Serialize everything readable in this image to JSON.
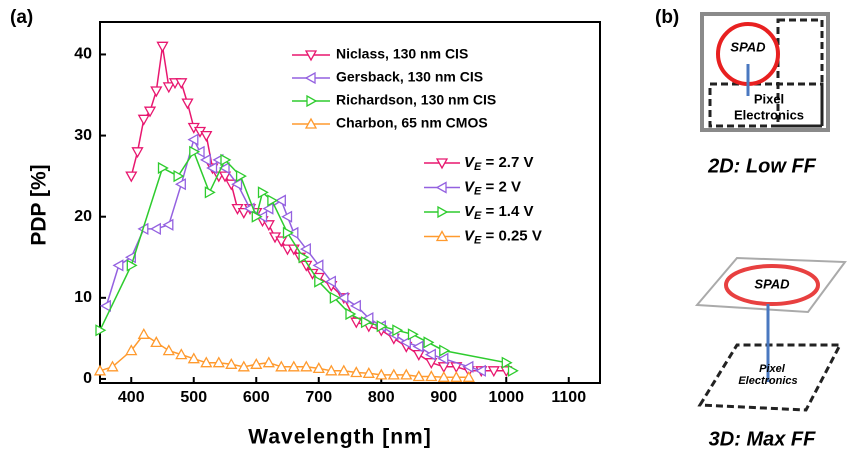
{
  "chart_data": {
    "type": "line",
    "panel_label": "(a)",
    "x_label": "Wavelength [nm]",
    "y_label": "PDP [%]",
    "xlim": [
      350,
      1150
    ],
    "ylim": [
      -0.5,
      44
    ],
    "xticks": [
      400,
      500,
      600,
      700,
      800,
      900,
      1000,
      1100
    ],
    "yticks": [
      0,
      10,
      20,
      30,
      40
    ],
    "series": [
      {
        "name": "Niclass, 130 nm CIS",
        "color": "#e8176f",
        "marker": "triangle-down",
        "bias_label": [
          "V",
          "E",
          " = 2.7 V"
        ],
        "x": [
          400,
          410,
          420,
          430,
          440,
          450,
          460,
          470,
          480,
          490,
          500,
          510,
          520,
          530,
          540,
          550,
          560,
          570,
          580,
          590,
          600,
          610,
          620,
          630,
          640,
          650,
          660,
          670,
          680,
          690,
          700,
          720,
          740,
          760,
          780,
          800,
          820,
          840,
          860,
          880,
          900,
          920,
          940,
          960,
          980,
          1000
        ],
        "values": [
          25,
          28,
          32,
          33,
          35.5,
          41,
          36,
          36.5,
          36.5,
          34,
          31,
          30.5,
          30,
          26,
          25,
          25,
          24,
          21,
          20.5,
          21,
          20.5,
          19.5,
          19,
          17.5,
          17,
          16,
          16,
          15,
          14,
          13,
          12.5,
          11.5,
          10,
          7,
          6.5,
          6,
          5,
          4,
          3,
          2,
          1.5,
          1.5,
          1,
          1,
          1,
          1
        ]
      },
      {
        "name": "Gersback, 130 nm CIS",
        "color": "#9461e0",
        "marker": "triangle-left",
        "bias_label": [
          "V",
          "E",
          " = 2 V"
        ],
        "x": [
          360,
          380,
          400,
          420,
          440,
          460,
          480,
          500,
          510,
          520,
          530,
          540,
          550,
          570,
          590,
          610,
          620,
          640,
          650,
          660,
          680,
          700,
          720,
          740,
          760,
          780,
          800,
          820,
          840,
          860,
          880,
          900,
          940,
          960
        ],
        "values": [
          9,
          14,
          15,
          18.5,
          18.5,
          19,
          24,
          29.5,
          28,
          27,
          26,
          27,
          26,
          24,
          21,
          20,
          21,
          22,
          20,
          18,
          16,
          14,
          12,
          10,
          9,
          7.5,
          6.5,
          5.5,
          4.5,
          4,
          3,
          2.5,
          1.5,
          1
        ]
      },
      {
        "name": "Richardson, 130 nm CIS",
        "color": "#2ecc2e",
        "marker": "triangle-right",
        "bias_label": [
          "V",
          "E",
          " = 1.4 V"
        ],
        "x": [
          350,
          400,
          450,
          475,
          500,
          525,
          550,
          575,
          600,
          610,
          625,
          650,
          675,
          700,
          725,
          750,
          775,
          800,
          825,
          850,
          875,
          900,
          1000,
          1010
        ],
        "values": [
          6,
          14,
          26,
          25,
          28,
          23,
          27,
          25,
          20,
          23,
          22,
          18,
          15,
          12,
          10,
          8,
          7,
          6.5,
          6,
          5.5,
          4.5,
          3.5,
          2,
          1
        ]
      },
      {
        "name": "Charbon, 65 nm CMOS",
        "color": "#ff9a2e",
        "marker": "triangle-up",
        "bias_label": [
          "V",
          "E",
          " = 0.25 V"
        ],
        "x": [
          350,
          370,
          400,
          420,
          440,
          460,
          480,
          500,
          520,
          540,
          560,
          580,
          600,
          620,
          640,
          660,
          680,
          700,
          720,
          740,
          760,
          780,
          800,
          820,
          840,
          860,
          880,
          900,
          920,
          940
        ],
        "values": [
          1,
          1.5,
          3.5,
          5.5,
          4.5,
          3.5,
          3,
          2.5,
          2,
          2,
          1.8,
          1.5,
          1.8,
          2,
          1.5,
          1.5,
          1.5,
          1.3,
          1,
          1,
          0.8,
          0.7,
          0.5,
          0.5,
          0.5,
          0.3,
          0.3,
          0.2,
          0.2,
          0.2
        ]
      }
    ]
  },
  "diagram": {
    "panel_label": "(b)",
    "top": {
      "spad": "SPAD",
      "pixel": "Pixel",
      "electronics": "Electronics",
      "caption": "2D: Low FF"
    },
    "bottom": {
      "spad": "SPAD",
      "pixel": "Pixel",
      "electronics": "Electronics",
      "caption": "3D: Max FF"
    }
  }
}
